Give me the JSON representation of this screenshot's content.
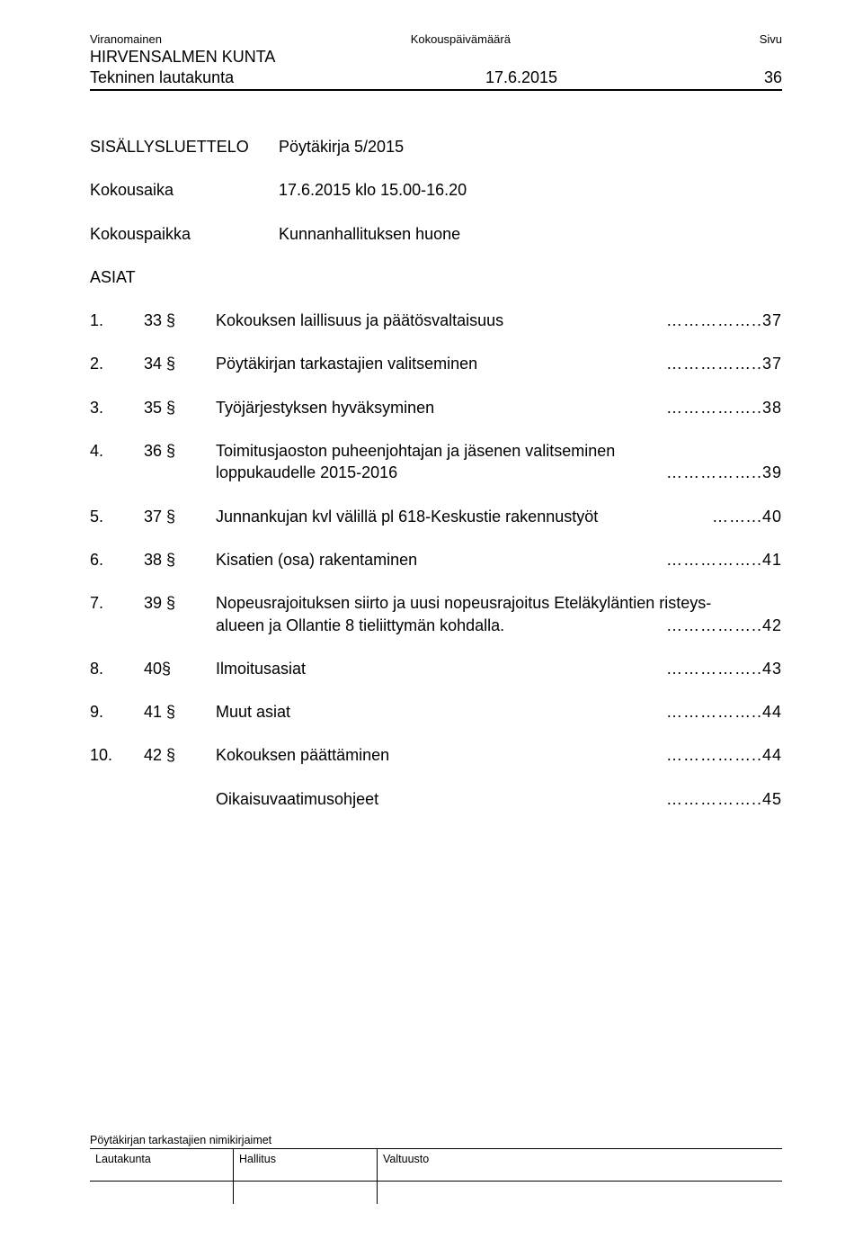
{
  "header": {
    "authority_label": "Viranomainen",
    "date_label": "Kokouspäivämäärä",
    "page_label": "Sivu",
    "org": "HIRVENSALMEN KUNTA",
    "board": "Tekninen lautakunta",
    "date": "17.6.2015",
    "page_num": "36"
  },
  "protocol": {
    "toc_label": "SISÄLLYSLUETTELO",
    "protocol_label": "Pöytäkirja 5/2015",
    "time_key": "Kokousaika",
    "time_val": "17.6.2015 klo 15.00-16.20",
    "place_key": "Kokouspaikka",
    "place_val": "Kunnanhallituksen huone",
    "asiat": "ASIAT"
  },
  "items": [
    {
      "num": "1.",
      "sec": "33 §",
      "lines": [
        {
          "text": "Kokouksen laillisuus ja päätösvaltaisuus",
          "dots": "……………..37"
        }
      ]
    },
    {
      "num": "2.",
      "sec": "34 §",
      "lines": [
        {
          "text": "Pöytäkirjan tarkastajien valitseminen",
          "dots": "……………..37"
        }
      ]
    },
    {
      "num": "3.",
      "sec": "35 §",
      "lines": [
        {
          "text": "Työjärjestyksen hyväksyminen",
          "dots": "……………..38"
        }
      ]
    },
    {
      "num": "4.",
      "sec": "36 §",
      "lines": [
        {
          "text": "Toimitusjaoston puheenjohtajan ja jäsenen valitseminen",
          "dots": ""
        },
        {
          "text": "loppukaudelle 2015-2016",
          "dots": "……………..39"
        }
      ]
    },
    {
      "num": "5.",
      "sec": "37 §",
      "lines": [
        {
          "text": "Junnankujan kvl välillä pl 618-Keskustie rakennustyöt",
          "dots": "……...40"
        }
      ]
    },
    {
      "num": "6.",
      "sec": "38 §",
      "lines": [
        {
          "text": "Kisatien (osa) rakentaminen",
          "dots": "……………..41"
        }
      ]
    },
    {
      "num": "7.",
      "sec": "39 §",
      "lines": [
        {
          "text": "Nopeusrajoituksen siirto ja uusi nopeusrajoitus Eteläkyläntien risteys-",
          "dots": ""
        },
        {
          "text": "alueen ja Ollantie 8 tieliittymän kohdalla.",
          "dots": "……………..42"
        }
      ]
    },
    {
      "num": "8.",
      "sec": "40§",
      "lines": [
        {
          "text": "Ilmoitusasiat",
          "dots": "……………..43"
        }
      ]
    },
    {
      "num": "9.",
      "sec": "41 §",
      "lines": [
        {
          "text": "Muut asiat",
          "dots": "……………..44"
        }
      ]
    },
    {
      "num": "10.",
      "sec": "42 §",
      "lines": [
        {
          "text": "Kokouksen päättäminen",
          "dots": "……………..44"
        }
      ]
    },
    {
      "num": "",
      "sec": "",
      "lines": [
        {
          "text": "Oikaisuvaatimusohjeet",
          "dots": "……………..45"
        }
      ]
    }
  ],
  "footer": {
    "label": "Pöytäkirjan tarkastajien nimikirjaimet",
    "c1": "Lautakunta",
    "c2": "Hallitus",
    "c3": "Valtuusto"
  }
}
